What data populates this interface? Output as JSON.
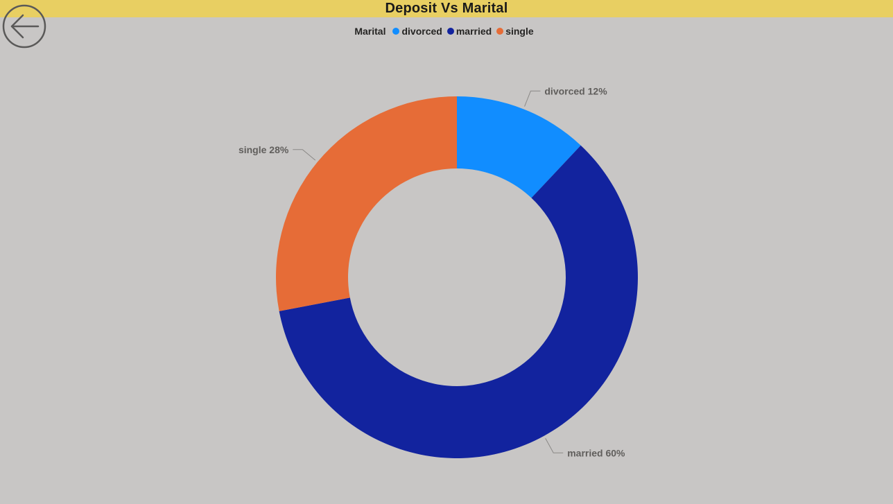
{
  "header": {
    "title": "Deposit Vs Marital"
  },
  "back_button": {
    "icon": "back-arrow-icon"
  },
  "legend": {
    "title": "Marital"
  },
  "colors": {
    "title_bar": "#E8CF62",
    "background": "#C8C6C5"
  },
  "chart_data": {
    "type": "pie",
    "subtype": "donut",
    "title": "Deposit Vs Marital",
    "legend_title": "Marital",
    "legend_position": "top-center",
    "slices": [
      {
        "name": "divorced",
        "value": 12,
        "label": "divorced 12%",
        "color": "#118DFF"
      },
      {
        "name": "married",
        "value": 60,
        "label": "married 60%",
        "color": "#12239E"
      },
      {
        "name": "single",
        "value": 28,
        "label": "single 28%",
        "color": "#E66C37"
      }
    ]
  }
}
